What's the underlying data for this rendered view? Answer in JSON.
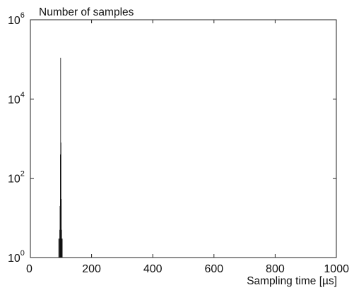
{
  "chart_data": {
    "type": "bar",
    "title": "Number of samples",
    "xlabel": "Sampling time [µs]",
    "ylabel": "",
    "x_scale": "linear",
    "y_scale": "log",
    "xlim": [
      0,
      1000
    ],
    "ylim": [
      1,
      1000000
    ],
    "xticks": [
      0,
      200,
      400,
      600,
      800,
      1000
    ],
    "yticks": [
      {
        "value": 1,
        "base": "10",
        "exp": "0"
      },
      {
        "value": 100,
        "base": "10",
        "exp": "2"
      },
      {
        "value": 10000,
        "base": "10",
        "exp": "4"
      },
      {
        "value": 1000000,
        "base": "10",
        "exp": "6"
      }
    ],
    "grid": false,
    "legend": "none",
    "bar_color": "#111111",
    "bars": [
      {
        "x": 92,
        "width": 3,
        "value": 3
      },
      {
        "x": 95,
        "width": 1,
        "value": 5
      },
      {
        "x": 96,
        "width": 1,
        "value": 20
      },
      {
        "x": 97,
        "width": 1,
        "value": 400
      },
      {
        "x": 98,
        "width": 1,
        "value": 110000
      },
      {
        "x": 99,
        "width": 1,
        "value": 800
      },
      {
        "x": 100,
        "width": 1,
        "value": 30
      },
      {
        "x": 101,
        "width": 1,
        "value": 5
      },
      {
        "x": 102,
        "width": 3,
        "value": 3
      }
    ]
  }
}
